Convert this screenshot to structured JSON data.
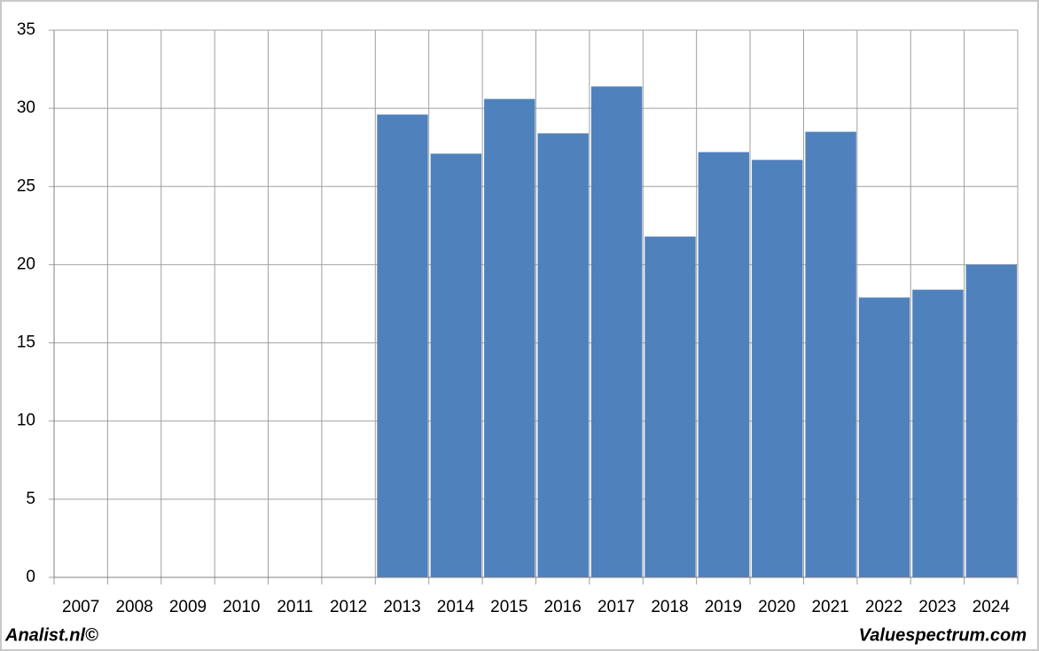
{
  "chart_data": {
    "type": "bar",
    "categories": [
      "2007",
      "2008",
      "2009",
      "2010",
      "2011",
      "2012",
      "2013",
      "2014",
      "2015",
      "2016",
      "2017",
      "2018",
      "2019",
      "2020",
      "2021",
      "2022",
      "2023",
      "2024"
    ],
    "values": [
      null,
      null,
      null,
      null,
      null,
      null,
      29.6,
      27.1,
      30.6,
      28.4,
      31.4,
      21.8,
      27.2,
      26.7,
      28.5,
      17.9,
      18.4,
      20.0
    ],
    "color": "#4f81bd",
    "ylim": [
      0,
      35
    ],
    "yticks": [
      0,
      5,
      10,
      15,
      20,
      25,
      30,
      35
    ],
    "grid": true
  },
  "footer": {
    "left": "Analist.nl©",
    "right": "Valuespectrum.com"
  }
}
